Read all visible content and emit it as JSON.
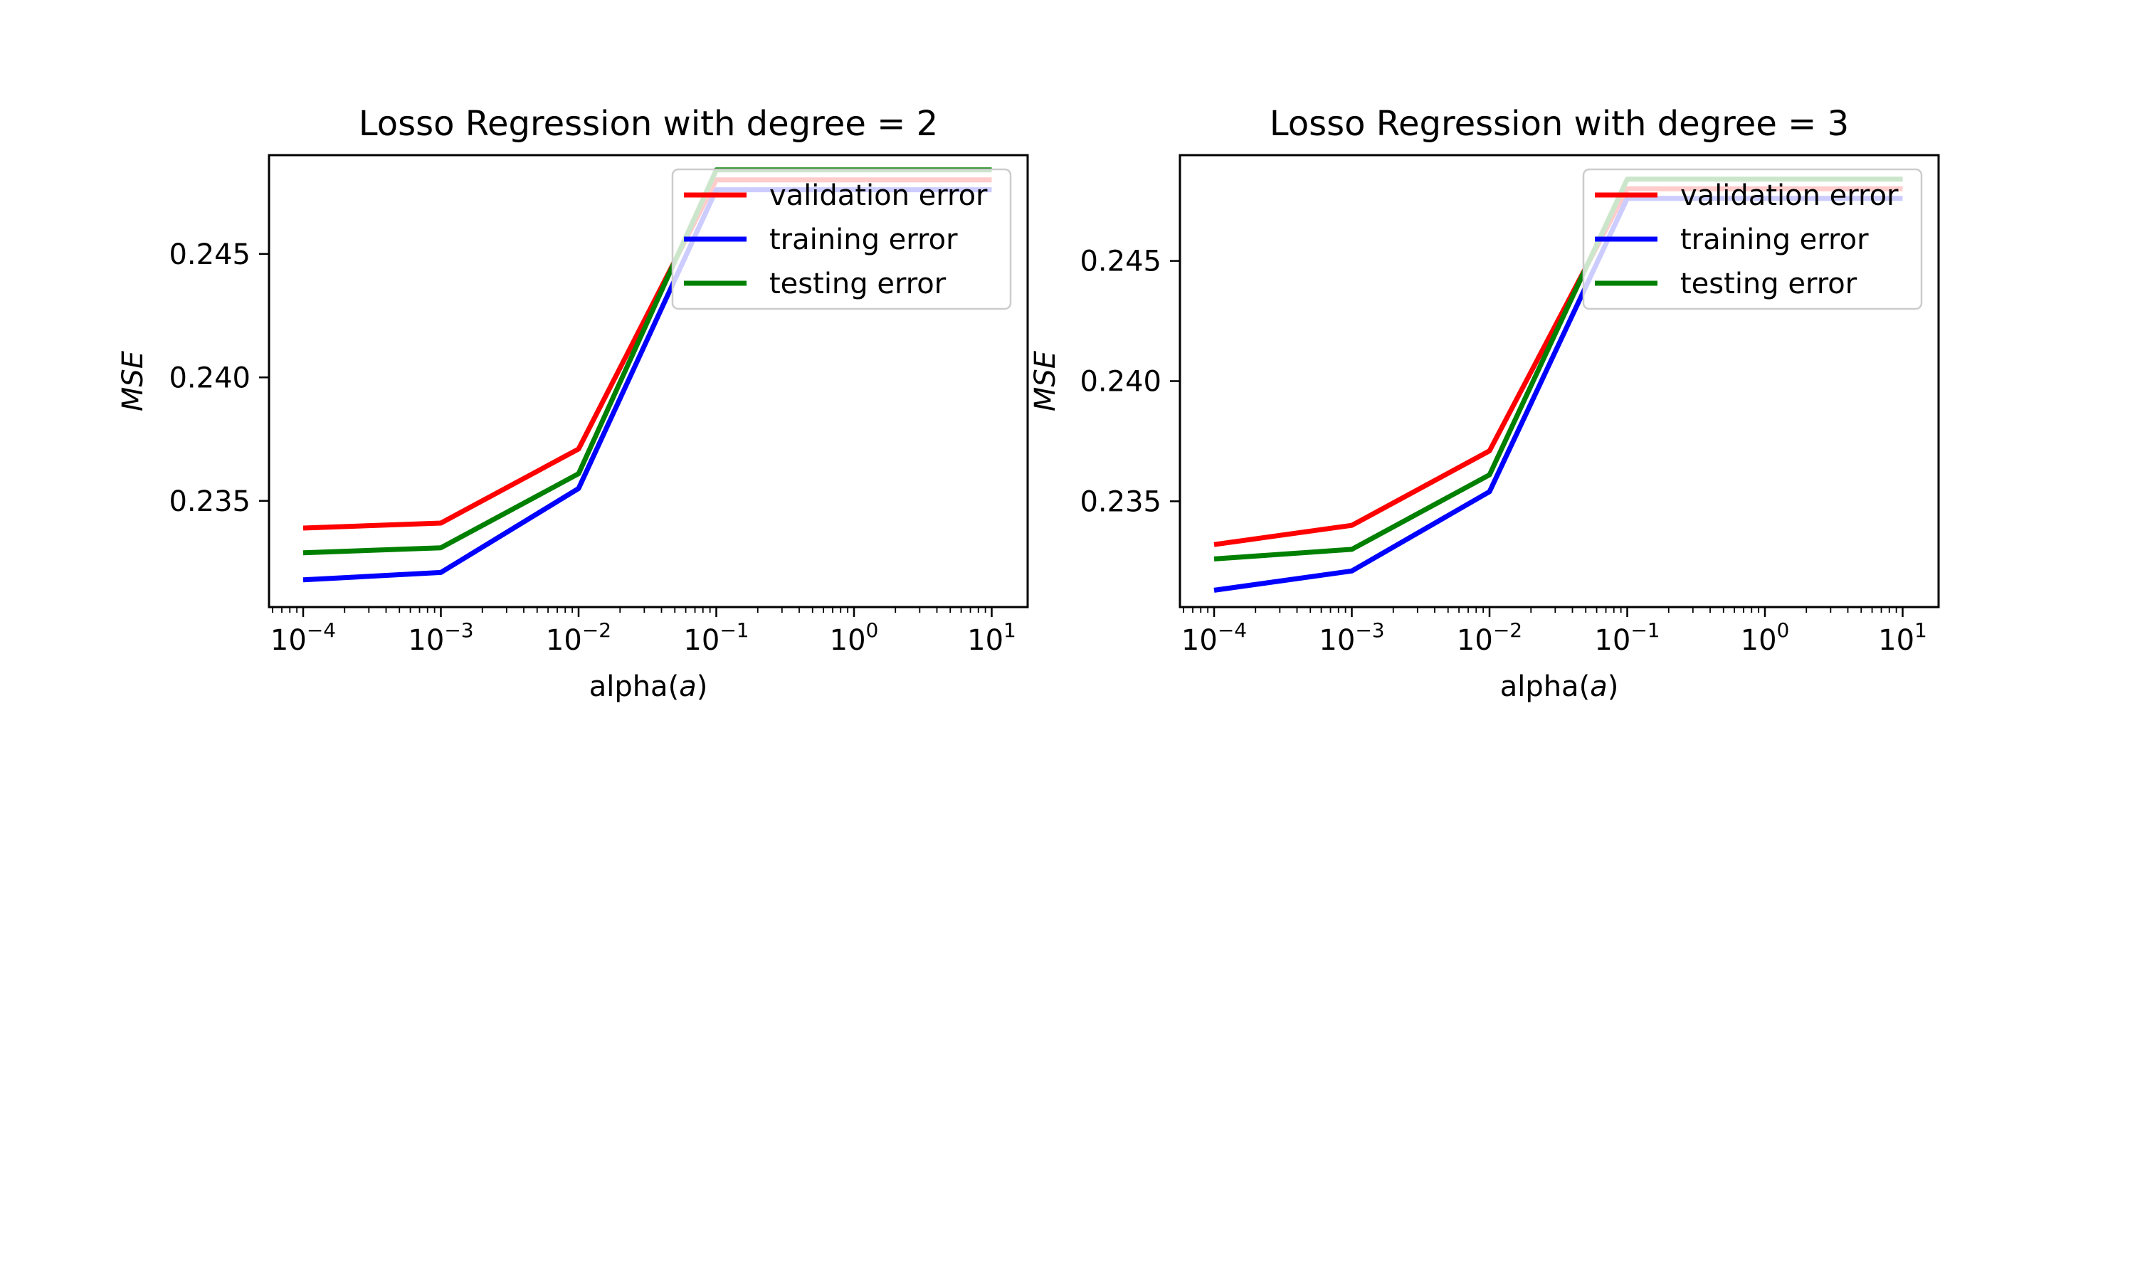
{
  "chart_data": [
    {
      "type": "line",
      "title": "Losso Regression with degree = 2",
      "xlabel": "alpha",
      "xlabel_symbol": "a",
      "ylabel": "MSE",
      "x_scale": "log",
      "x": [
        0.0001,
        0.001,
        0.01,
        0.1,
        1,
        10
      ],
      "xtick_labels": [
        {
          "base": "10",
          "exp": "−4"
        },
        {
          "base": "10",
          "exp": "−3"
        },
        {
          "base": "10",
          "exp": "−2"
        },
        {
          "base": "10",
          "exp": "−1"
        },
        {
          "base": "10",
          "exp": "0"
        },
        {
          "base": "10",
          "exp": "1"
        }
      ],
      "ylim": [
        0.2307,
        0.249
      ],
      "yticks": [
        0.235,
        0.24,
        0.245
      ],
      "ytick_labels": [
        "0.235",
        "0.240",
        "0.245"
      ],
      "legend_position": "upper right",
      "series": [
        {
          "name": "validation error",
          "color": "#ff0000",
          "values": [
            0.2339,
            0.2341,
            0.2371,
            0.248,
            0.248,
            0.248
          ]
        },
        {
          "name": "training error",
          "color": "#0000ff",
          "values": [
            0.2318,
            0.2321,
            0.2355,
            0.2476,
            0.2476,
            0.2476
          ]
        },
        {
          "name": "testing error",
          "color": "#008000",
          "values": [
            0.2329,
            0.2331,
            0.2361,
            0.2484,
            0.2484,
            0.2484
          ]
        }
      ]
    },
    {
      "type": "line",
      "title": "Losso Regression with degree = 3",
      "xlabel": "alpha",
      "xlabel_symbol": "a",
      "ylabel": "MSE",
      "x_scale": "log",
      "x": [
        0.0001,
        0.001,
        0.01,
        0.1,
        1,
        10
      ],
      "xtick_labels": [
        {
          "base": "10",
          "exp": "−4"
        },
        {
          "base": "10",
          "exp": "−3"
        },
        {
          "base": "10",
          "exp": "−2"
        },
        {
          "base": "10",
          "exp": "−1"
        },
        {
          "base": "10",
          "exp": "0"
        },
        {
          "base": "10",
          "exp": "1"
        }
      ],
      "ylim": [
        0.2306,
        0.2494
      ],
      "yticks": [
        0.235,
        0.24,
        0.245
      ],
      "ytick_labels": [
        "0.235",
        "0.240",
        "0.245"
      ],
      "legend_position": "upper right",
      "series": [
        {
          "name": "validation error",
          "color": "#ff0000",
          "values": [
            0.2332,
            0.234,
            0.2371,
            0.248,
            0.248,
            0.248
          ]
        },
        {
          "name": "training error",
          "color": "#0000ff",
          "values": [
            0.2313,
            0.2321,
            0.2354,
            0.2476,
            0.2476,
            0.2476
          ]
        },
        {
          "name": "testing error",
          "color": "#008000",
          "values": [
            0.2326,
            0.233,
            0.2361,
            0.2484,
            0.2484,
            0.2484
          ]
        }
      ]
    }
  ]
}
